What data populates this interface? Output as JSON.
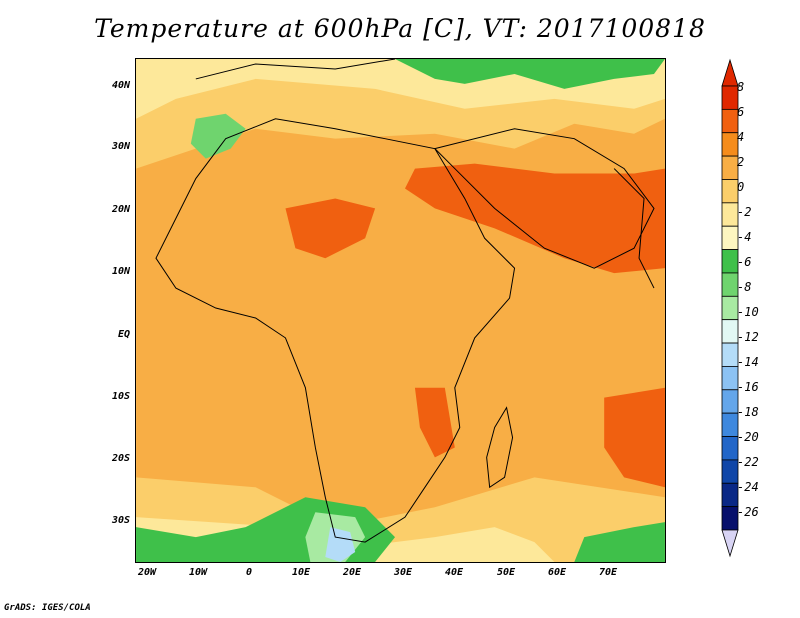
{
  "title": "Temperature at 600hPa [C], VT: 2017100818",
  "credit": "GrADS: IGES/COLA",
  "y_axis_labels": [
    "40N",
    "30N",
    "20N",
    "10N",
    "EQ",
    "10S",
    "20S",
    "30S"
  ],
  "x_axis_labels": [
    "20W",
    "10W",
    "0",
    "10E",
    "20E",
    "30E",
    "40E",
    "50E",
    "60E",
    "70E"
  ],
  "colorbar": {
    "labels": [
      "8",
      "6",
      "4",
      "2",
      "0",
      "-2",
      "-4",
      "-6",
      "-8",
      "-10",
      "-12",
      "-14",
      "-16",
      "-18",
      "-20",
      "-22",
      "-24",
      "-26"
    ],
    "colors": [
      "#e02800",
      "#f06010",
      "#f58c1c",
      "#f8ae45",
      "#fbce6a",
      "#fde89a",
      "#fdf6c0",
      "#3fc04a",
      "#6fd46e",
      "#a8eaa2",
      "#e2f8f4",
      "#b4dcf8",
      "#8cc2f3",
      "#64a6ea",
      "#3e88de",
      "#2266c8",
      "#1046a8",
      "#0a2886",
      "#07106c"
    ],
    "top_arrow_color": "#e02800",
    "bottom_arrow_color": "#d8d4f4"
  },
  "colors": {
    "background_warm": "#f8ae45",
    "hot_core": "#f06010",
    "cool_zone": "#fbce6a",
    "cold_green": "#3fc04a",
    "land_border": "#000000"
  }
}
